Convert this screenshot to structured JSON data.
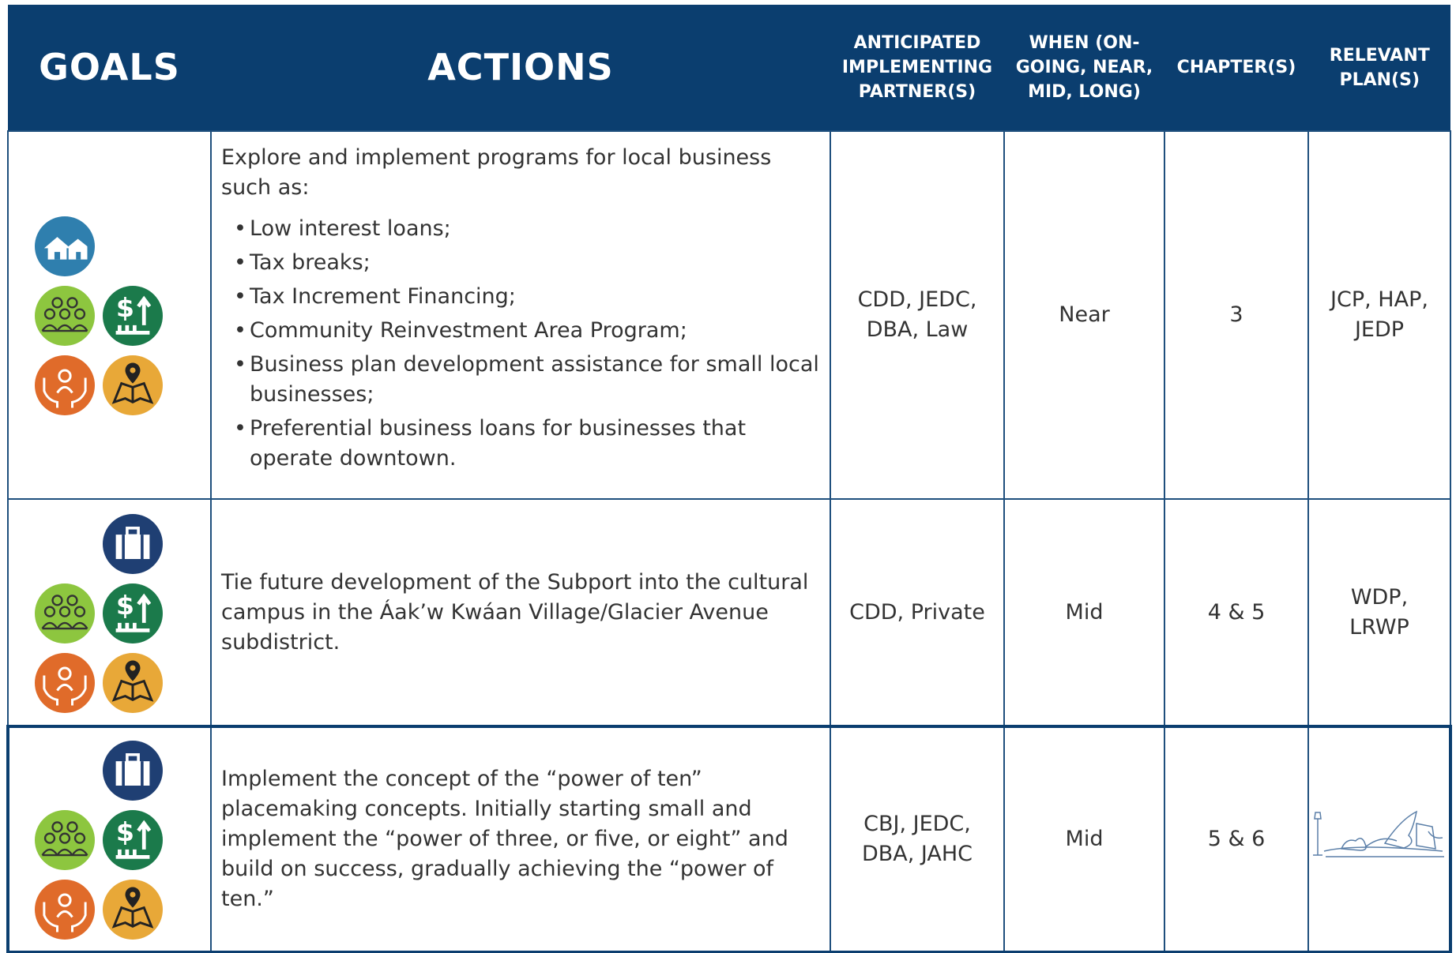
{
  "header": {
    "goals": "GOALS",
    "actions": "ACTIONS",
    "partners": "ANTICIPATED IMPLEMENTING PARTNER(S)",
    "when": "WHEN (ON-GOING, NEAR, MID, LONG)",
    "chapters": "CHAPTER(S)",
    "plans": "RELEVANT PLAN(S)"
  },
  "rows": [
    {
      "action": "Explore and implement programs for local business such as:",
      "bullets": [
        "Low interest loans;",
        "Tax breaks;",
        "Tax Increment Financing;",
        "Community Reinvestment Area Program;",
        "Business plan development assistance for small local businesses;",
        "Preferential business loans for businesses that operate downtown."
      ],
      "partners": "CDD, JEDC, DBA, Law",
      "when": "Near",
      "chapters": "3",
      "plans": "JCP, HAP, JEDP"
    },
    {
      "action": "Tie future development of the Subport into the cultural campus in the Áak’w Kwáan Village/Glacier Avenue subdistrict.",
      "partners": "CDD, Private",
      "when": "Mid",
      "chapters": "4 & 5",
      "plans": "WDP, LRWP"
    },
    {
      "action": "Implement the concept of the “power of ten” placemaking concepts.  Initially starting small and implement the “power of three, or five, or eight” and build on success, gradually achieving the “power of ten.”",
      "partners": "CBJ, JEDC, DBA, JAHC",
      "when": "Mid",
      "chapters": "5 & 6"
    }
  ]
}
